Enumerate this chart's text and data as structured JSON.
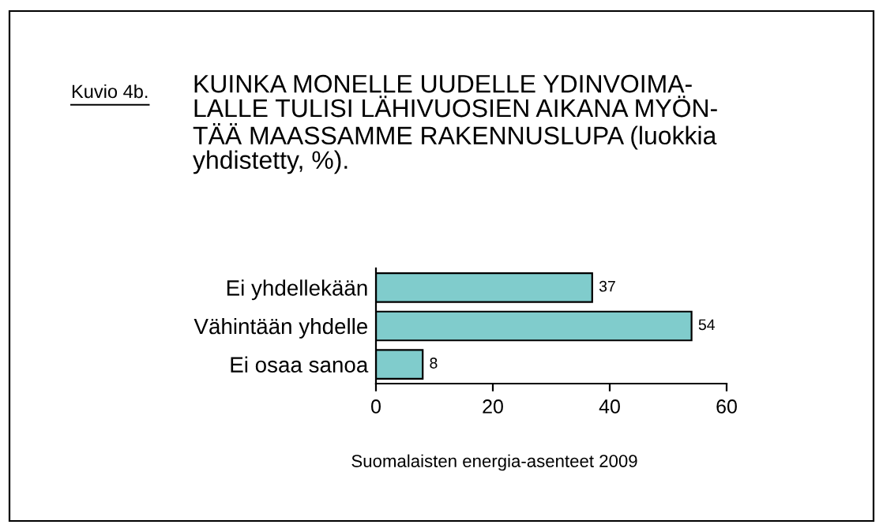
{
  "chart_data": {
    "type": "bar",
    "orientation": "horizontal",
    "title": "KUINKA MONELLE UUDELLE YDINVOIMA-\nLALLE TULISI LÄHIVUOSIEN AIKANA MYÖN-\nTÄÄ MAASSAMME RAKENNUSLUPA (luokkia\nyhdistetty, %).",
    "annotations": [
      "Kuvio 4b.",
      "Suomalaisten energia-asenteet 2009"
    ],
    "categories": [
      "Ei yhdellekään",
      "Vähintään yhdelle",
      "Ei osaa sanoa"
    ],
    "values": [
      37,
      54,
      8
    ],
    "color": "#80cccc",
    "data_labels": true,
    "xlim": [
      0,
      60
    ],
    "xticks": [
      0,
      20,
      40,
      60
    ],
    "grid": false,
    "legend": false
  }
}
